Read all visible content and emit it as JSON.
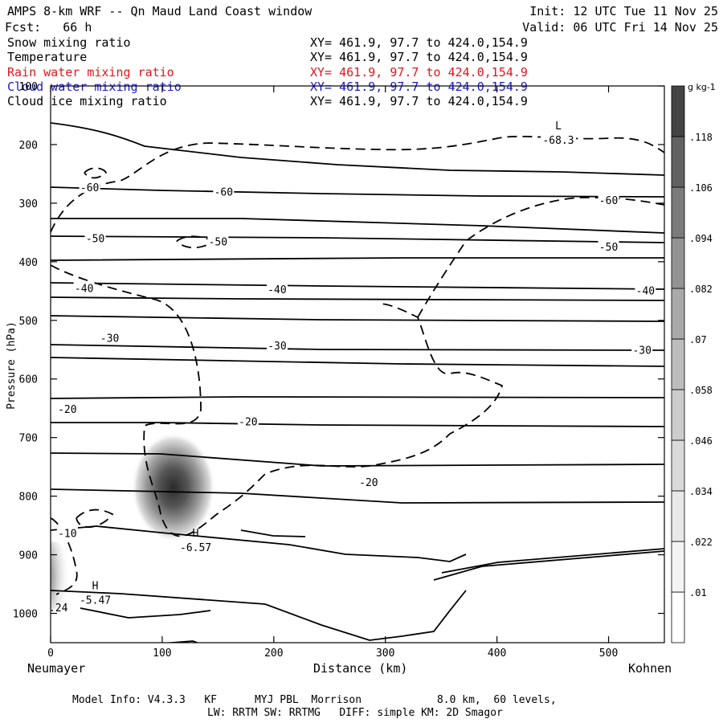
{
  "header": {
    "title": "AMPS 8-km WRF -- Qn Maud Land Coast window",
    "init": "Init: 12 UTC Tue 11 Nov 25",
    "fcst": "Fcst:   66 h",
    "valid": "Valid: 06 UTC Fri 14 Nov 25"
  },
  "fields": [
    {
      "name": "Snow mixing ratio",
      "xy": "XY= 461.9, 97.7 to 424.0,154.9",
      "color": "#000000"
    },
    {
      "name": "Temperature",
      "xy": "XY= 461.9, 97.7 to 424.0,154.9",
      "color": "#000000"
    },
    {
      "name": "Rain water mixing ratio",
      "xy": "XY= 461.9, 97.7 to 424.0,154.9",
      "color": "#e8141b"
    },
    {
      "name": "Cloud water mixing ratio",
      "xy": "XY= 461.9, 97.7 to 424.0,154.9",
      "color": "#1a1acc"
    },
    {
      "name": "Cloud ice mixing ratio",
      "xy": "XY= 461.9, 97.7 to 424.0,154.9",
      "color": "#000000"
    }
  ],
  "footer": {
    "line1": "Model Info: V4.3.3   KF      MYJ PBL  Morrison            8.0 km,  60 levels,",
    "line2": "LW: RRTM SW: RRTMG   DIFF: simple KM: 2D Smagor"
  },
  "chart_data": {
    "type": "cross-section contour",
    "xlabel": "Distance (km)",
    "ylabel": "Pressure (hPa)",
    "xlim": [
      0,
      550
    ],
    "ylim": [
      1050,
      100
    ],
    "x_ticks": [
      0,
      100,
      200,
      300,
      400,
      500
    ],
    "y_ticks": [
      100,
      200,
      300,
      400,
      500,
      600,
      700,
      800,
      900,
      1000
    ],
    "x_end_labels": {
      "left": "Neumayer",
      "right": "Kohnen"
    },
    "colorbar": {
      "unit": "g kg-1",
      "levels": [
        ".01",
        ".022",
        ".034",
        ".046",
        ".058",
        ".07",
        ".082",
        ".094",
        ".106",
        ".118"
      ]
    },
    "temperature_labels": [
      {
        "text": "-60",
        "x": 35,
        "p": 273
      },
      {
        "text": "-60",
        "x": 155,
        "p": 280
      },
      {
        "text": "-60",
        "x": 500,
        "p": 295
      },
      {
        "text": "-50",
        "x": 40,
        "p": 360
      },
      {
        "text": "-50",
        "x": 150,
        "p": 365
      },
      {
        "text": "-50",
        "x": 500,
        "p": 374
      },
      {
        "text": "-40",
        "x": 30,
        "p": 445
      },
      {
        "text": "-40",
        "x": 203,
        "p": 447
      },
      {
        "text": "-40",
        "x": 533,
        "p": 449
      },
      {
        "text": "-30",
        "x": 53,
        "p": 530
      },
      {
        "text": "-30",
        "x": 203,
        "p": 543
      },
      {
        "text": "-30",
        "x": 530,
        "p": 550
      },
      {
        "text": "-20",
        "x": 15,
        "p": 651
      },
      {
        "text": "-20",
        "x": 177,
        "p": 672
      },
      {
        "text": "-20",
        "x": 285,
        "p": 776
      },
      {
        "text": "-10",
        "x": 15,
        "p": 863
      }
    ],
    "extrema": [
      {
        "symbol": "L",
        "value": "-68.3",
        "x": 455,
        "p": 185
      },
      {
        "symbol": "H",
        "value": "-6.57",
        "x": 130,
        "p": 880
      },
      {
        "symbol": "H",
        "value": "-5.47",
        "x": 40,
        "p": 970
      }
    ],
    "snow_maxima": [
      {
        "x": 110,
        "p": 785,
        "value": 0.12
      },
      {
        "x": 2,
        "p": 935,
        "value": 0.07
      }
    ],
    "snow_labels": [
      {
        "text": ".24",
        "x": 7,
        "p": 990
      }
    ]
  }
}
